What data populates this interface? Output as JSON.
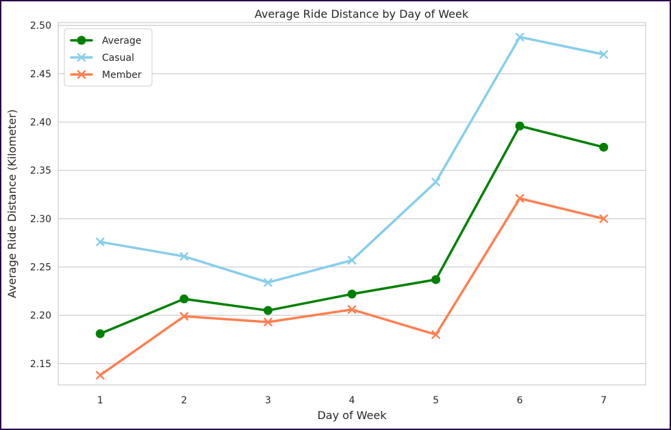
{
  "chart_data": {
    "type": "line",
    "title": "Average Ride Distance by Day of Week",
    "xlabel": "Day of Week",
    "ylabel": "Average Ride Distance (Kilometer)",
    "x": [
      1,
      2,
      3,
      4,
      5,
      6,
      7
    ],
    "x_tick_labels": [
      "1",
      "2",
      "3",
      "4",
      "5",
      "6",
      "7"
    ],
    "xlim": [
      0.5,
      7.5
    ],
    "ylim": [
      2.128,
      2.503
    ],
    "y_ticks": [
      2.15,
      2.2,
      2.25,
      2.3,
      2.35,
      2.4,
      2.45,
      2.5
    ],
    "y_tick_labels": [
      "2.15",
      "2.20",
      "2.25",
      "2.30",
      "2.35",
      "2.40",
      "2.45",
      "2.50"
    ],
    "grid": true,
    "legend_position": "top-left",
    "series": [
      {
        "name": "Average",
        "color": "#008000",
        "marker": "circle",
        "values": [
          2.181,
          2.217,
          2.205,
          2.222,
          2.237,
          2.396,
          2.374
        ]
      },
      {
        "name": "Casual",
        "color": "#87CEEB",
        "marker": "x",
        "values": [
          2.276,
          2.261,
          2.234,
          2.257,
          2.338,
          2.488,
          2.47
        ]
      },
      {
        "name": "Member",
        "color": "#FF7F50",
        "marker": "x",
        "values": [
          2.138,
          2.199,
          2.193,
          2.206,
          2.18,
          2.321,
          2.3
        ]
      }
    ]
  }
}
